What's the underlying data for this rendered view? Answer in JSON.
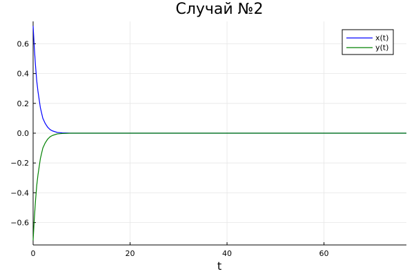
{
  "colors": {
    "x_series": "#0000ff",
    "y_series": "#008000",
    "grid": "#e6e6e6",
    "axis": "#000000",
    "background": "#ffffff"
  },
  "chart_data": {
    "type": "line",
    "title": "Случай №2",
    "xlabel": "t",
    "ylabel": "",
    "xlim": [
      0,
      77
    ],
    "ylim": [
      -0.75,
      0.75
    ],
    "x_ticks": [
      0,
      20,
      40,
      60
    ],
    "x_tick_labels": [
      "0",
      "20",
      "40",
      "60"
    ],
    "y_ticks": [
      0.6,
      0.4,
      0.2,
      0.0,
      -0.2,
      -0.4,
      -0.6
    ],
    "y_tick_labels": [
      "0.6",
      "0.4",
      "0.2",
      "0.0",
      "−0.2",
      "−0.4",
      "−0.6"
    ],
    "grid": true,
    "legend_position": "top-right",
    "series": [
      {
        "name": "x(t)",
        "color": "#0000ff",
        "x": [
          0,
          0.25,
          0.5,
          0.75,
          1,
          1.5,
          2,
          2.5,
          3,
          3.5,
          4,
          5,
          6,
          8,
          10,
          20,
          40,
          60,
          77
        ],
        "y": [
          0.72,
          0.57,
          0.45,
          0.35,
          0.28,
          0.17,
          0.1,
          0.065,
          0.04,
          0.024,
          0.015,
          0.005,
          0.002,
          0.0,
          0.0,
          0.0,
          0.0,
          0.0,
          0.0
        ]
      },
      {
        "name": "y(t)",
        "color": "#008000",
        "x": [
          0,
          0.25,
          0.5,
          0.75,
          1,
          1.5,
          2,
          2.5,
          3,
          3.5,
          4,
          5,
          6,
          8,
          10,
          20,
          40,
          60,
          77
        ],
        "y": [
          -0.72,
          -0.57,
          -0.45,
          -0.35,
          -0.28,
          -0.17,
          -0.1,
          -0.065,
          -0.04,
          -0.024,
          -0.015,
          -0.005,
          -0.002,
          0.0,
          0.0,
          0.0,
          0.0,
          0.0,
          0.0
        ]
      }
    ]
  }
}
